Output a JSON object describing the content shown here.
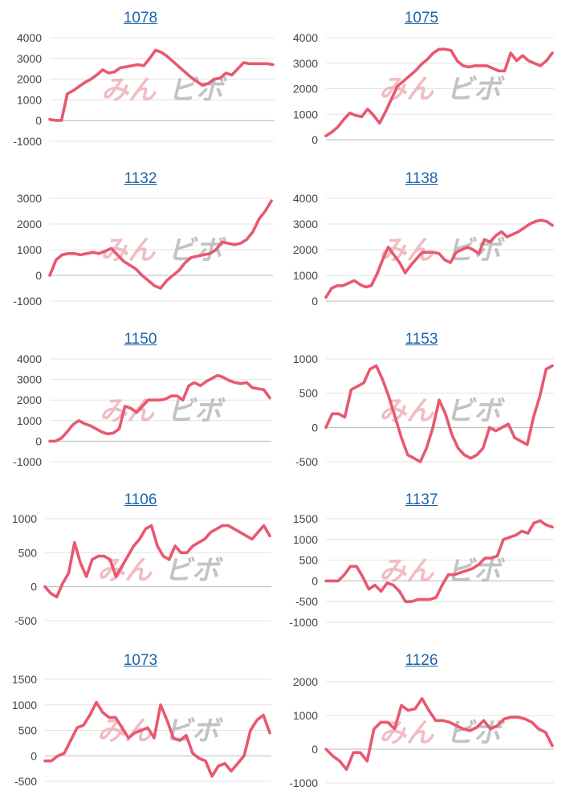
{
  "colors": {
    "line": "#e8586f",
    "title": "#1a63a8",
    "watermark_pink": "#efb1b9",
    "watermark_gray": "#b9b9b9"
  },
  "watermark": {
    "left": "みん",
    "right": "ビボ"
  },
  "chart_data": [
    {
      "type": "line",
      "title": "1078",
      "ylim": [
        -1000,
        4000
      ],
      "yticks": [
        -1000,
        0,
        1000,
        2000,
        3000,
        4000
      ],
      "values": [
        60,
        10,
        10,
        1300,
        1450,
        1650,
        1850,
        2000,
        2200,
        2450,
        2300,
        2350,
        2550,
        2600,
        2650,
        2700,
        2650,
        3000,
        3400,
        3300,
        3100,
        2850,
        2600,
        2350,
        2100,
        1900,
        1700,
        1800,
        2000,
        2050,
        2300,
        2200,
        2500,
        2800,
        2750,
        2750,
        2750,
        2750,
        2700
      ]
    },
    {
      "type": "line",
      "title": "1075",
      "ylim": [
        0,
        4000
      ],
      "yticks": [
        0,
        1000,
        2000,
        3000,
        4000
      ],
      "values": [
        150,
        300,
        500,
        800,
        1050,
        950,
        900,
        1200,
        950,
        650,
        1100,
        1600,
        2100,
        2300,
        2500,
        2700,
        2950,
        3150,
        3400,
        3550,
        3550,
        3500,
        3100,
        2900,
        2850,
        2900,
        2900,
        2900,
        2800,
        2700,
        2700,
        3400,
        3100,
        3300,
        3100,
        3000,
        2900,
        3100,
        3400
      ]
    },
    {
      "type": "line",
      "title": "1132",
      "ylim": [
        -1000,
        3000
      ],
      "yticks": [
        -1000,
        0,
        1000,
        2000,
        3000
      ],
      "values": [
        0,
        600,
        800,
        850,
        850,
        800,
        850,
        900,
        850,
        950,
        1050,
        800,
        550,
        400,
        250,
        0,
        -200,
        -400,
        -500,
        -200,
        0,
        200,
        500,
        700,
        750,
        800,
        850,
        1000,
        1300,
        1250,
        1200,
        1250,
        1400,
        1700,
        2200,
        2500,
        2900
      ]
    },
    {
      "type": "line",
      "title": "1138",
      "ylim": [
        0,
        4000
      ],
      "yticks": [
        0,
        1000,
        2000,
        3000,
        4000
      ],
      "values": [
        150,
        500,
        600,
        600,
        700,
        800,
        650,
        550,
        600,
        1050,
        1600,
        2100,
        1800,
        1500,
        1100,
        1400,
        1650,
        1900,
        1900,
        1900,
        1850,
        1600,
        1500,
        1900,
        2000,
        2100,
        2000,
        1850,
        2400,
        2300,
        2550,
        2700,
        2500,
        2600,
        2700,
        2850,
        3000,
        3100,
        3150,
        3100,
        2950
      ]
    },
    {
      "type": "line",
      "title": "1150",
      "ylim": [
        -1000,
        4000
      ],
      "yticks": [
        -1000,
        0,
        1000,
        2000,
        3000,
        4000
      ],
      "values": [
        0,
        0,
        150,
        450,
        800,
        1000,
        850,
        750,
        600,
        450,
        350,
        400,
        600,
        1700,
        1600,
        1400,
        1700,
        2000,
        2000,
        2000,
        2050,
        2200,
        2200,
        2000,
        2700,
        2850,
        2700,
        2900,
        3050,
        3200,
        3100,
        2950,
        2850,
        2800,
        2850,
        2600,
        2550,
        2500,
        2100
      ]
    },
    {
      "type": "line",
      "title": "1153",
      "ylim": [
        -500,
        1000
      ],
      "yticks": [
        -500,
        0,
        500,
        1000
      ],
      "values": [
        0,
        200,
        200,
        150,
        550,
        600,
        650,
        850,
        900,
        700,
        450,
        150,
        -150,
        -400,
        -450,
        -500,
        -300,
        0,
        400,
        200,
        -100,
        -300,
        -400,
        -450,
        -400,
        -300,
        0,
        -50,
        0,
        50,
        -150,
        -200,
        -250,
        150,
        450,
        850,
        900
      ]
    },
    {
      "type": "line",
      "title": "1106",
      "ylim": [
        -500,
        1000
      ],
      "yticks": [
        -500,
        0,
        500,
        1000
      ],
      "values": [
        0,
        -100,
        -150,
        50,
        200,
        650,
        350,
        150,
        400,
        450,
        450,
        400,
        150,
        300,
        450,
        600,
        700,
        850,
        900,
        600,
        450,
        400,
        600,
        500,
        500,
        600,
        650,
        700,
        800,
        850,
        900,
        900,
        850,
        800,
        750,
        700,
        800,
        900,
        750
      ]
    },
    {
      "type": "line",
      "title": "1137",
      "ylim": [
        -1000,
        1500
      ],
      "yticks": [
        -1000,
        -500,
        0,
        500,
        1000,
        1500
      ],
      "values": [
        0,
        0,
        0,
        150,
        350,
        350,
        100,
        -200,
        -100,
        -250,
        -50,
        -100,
        -250,
        -500,
        -500,
        -450,
        -450,
        -450,
        -400,
        -100,
        150,
        150,
        200,
        250,
        300,
        400,
        550,
        550,
        600,
        1000,
        1050,
        1100,
        1200,
        1150,
        1400,
        1450,
        1350,
        1300
      ]
    },
    {
      "type": "line",
      "title": "1073",
      "ylim": [
        -500,
        1500
      ],
      "yticks": [
        -500,
        0,
        500,
        1000,
        1500
      ],
      "values": [
        -100,
        -100,
        0,
        50,
        300,
        550,
        600,
        800,
        1050,
        850,
        750,
        750,
        550,
        350,
        450,
        500,
        550,
        350,
        1000,
        700,
        350,
        300,
        400,
        50,
        -50,
        -100,
        -400,
        -200,
        -150,
        -300,
        -150,
        0,
        500,
        700,
        800,
        450
      ]
    },
    {
      "type": "line",
      "title": "1126",
      "ylim": [
        -1000,
        2000
      ],
      "yticks": [
        -1000,
        0,
        1000,
        2000
      ],
      "values": [
        0,
        -200,
        -350,
        -600,
        -100,
        -100,
        -350,
        600,
        800,
        800,
        600,
        1300,
        1150,
        1200,
        1500,
        1150,
        850,
        850,
        800,
        700,
        600,
        550,
        650,
        850,
        600,
        700,
        900,
        950,
        950,
        900,
        800,
        600,
        500,
        100
      ]
    }
  ]
}
